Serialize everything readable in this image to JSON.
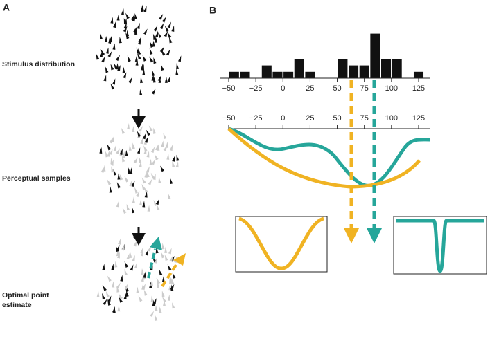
{
  "panels": {
    "a": "A",
    "b": "B"
  },
  "labels": {
    "stimulus": "Stimulus distribution",
    "samples": "Perceptual samples",
    "estimate": [
      "Optimal point",
      "estimate"
    ]
  },
  "chart_data": {
    "type": "histogram",
    "color": "#111111",
    "bins": [
      -50,
      -40,
      -30,
      -20,
      -10,
      0,
      10,
      20,
      30,
      40,
      50,
      60,
      70,
      80,
      90,
      100,
      110,
      120,
      130
    ],
    "values": [
      1,
      1,
      0,
      2,
      1,
      1,
      3,
      1,
      0,
      0,
      3,
      2,
      2,
      7,
      3,
      3,
      0,
      1
    ],
    "xlim": [
      -50,
      125
    ],
    "xticks": [
      {
        "value": -50,
        "label": "−50"
      },
      {
        "value": -25,
        "label": "−25"
      },
      0,
      25,
      50,
      75,
      100,
      125
    ]
  }
}
